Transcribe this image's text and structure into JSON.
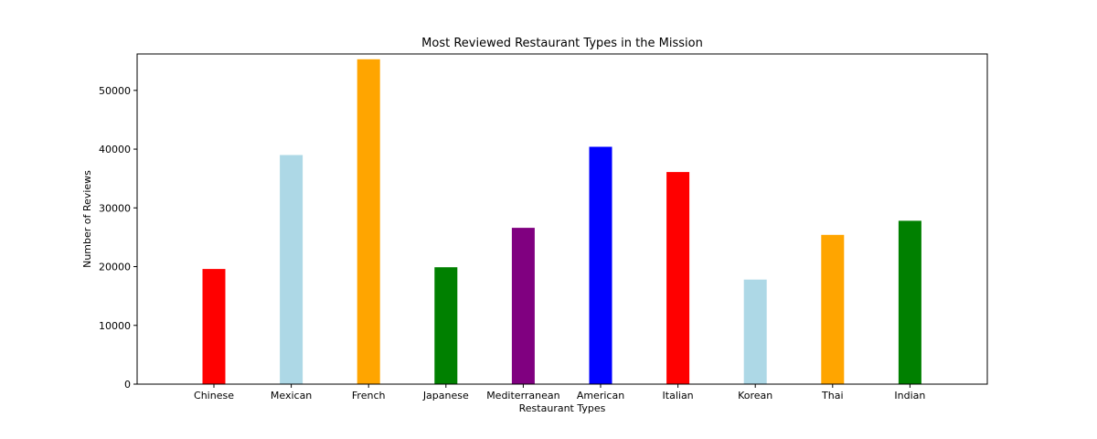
{
  "chart_data": {
    "type": "bar",
    "title": "Most Reviewed Restaurant Types in the Mission",
    "xlabel": "Restaurant Types",
    "ylabel": "Number of Reviews",
    "ylim": [
      0,
      56200
    ],
    "yticks": [
      0,
      10000,
      20000,
      30000,
      40000,
      50000
    ],
    "grid": false,
    "legend": "none",
    "categories": [
      "Chinese",
      "Mexican",
      "French",
      "Japanese",
      "Mediterranean",
      "American",
      "Italian",
      "Korean",
      "Thai",
      "Indian"
    ],
    "values": [
      19600,
      39000,
      55300,
      19900,
      26600,
      40400,
      36100,
      17800,
      25400,
      27800
    ],
    "colors": [
      "#ff0000",
      "#add8e6",
      "#ffa500",
      "#008000",
      "#800080",
      "#0000ff",
      "#ff0000",
      "#add8e6",
      "#ffa500",
      "#008000"
    ]
  }
}
